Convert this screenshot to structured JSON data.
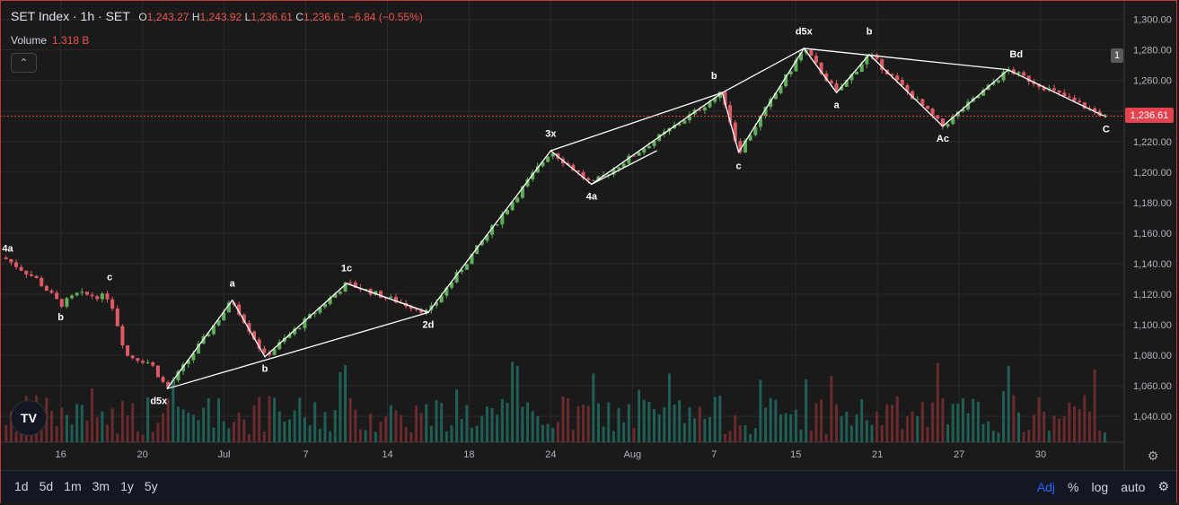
{
  "header": {
    "title": "SET Index · 1h · SET",
    "o_label": "O",
    "o_value": "1,243.27",
    "h_label": "H",
    "h_value": "1,243.92",
    "l_label": "L",
    "l_value": "1,236.61",
    "c_label": "C",
    "c_value": "1,236.61",
    "change": "−6.84 (−0.55%)",
    "volume_label": "Volume",
    "volume_value": "1.318 B"
  },
  "price_badge": "1,236.61",
  "scale_button": "1",
  "logo_text": "TV",
  "ranges": [
    "1d",
    "5d",
    "1m",
    "3m",
    "1y",
    "5y"
  ],
  "controls": {
    "adj": "Adj",
    "percent": "%",
    "log": "log",
    "auto": "auto"
  },
  "colors": {
    "up": "#26a69a",
    "down": "#ef5350",
    "up_candle": "#5fae5a",
    "down_candle": "#e05a66",
    "line": "#ffffff",
    "current": "#e3434f"
  },
  "chart_data": {
    "type": "candlestick",
    "ylim": [
      1023,
      1308
    ],
    "y_ticks": [
      1040,
      1060,
      1080,
      1100,
      1120,
      1140,
      1160,
      1180,
      1200,
      1220,
      1240,
      1260,
      1280,
      1300
    ],
    "y_tick_labels": [
      "1,040.00",
      "1,060.00",
      "1,080.00",
      "1,100.00",
      "1,120.00",
      "1,140.00",
      "1,160.00",
      "1,180.00",
      "1,200.00",
      "1,220.00",
      "1,240.00",
      "1,260.00",
      "1,280.00",
      "1,300.00"
    ],
    "x_index_range": [
      0,
      125
    ],
    "x_ticks": [
      {
        "label": "16",
        "x": 7
      },
      {
        "label": "20",
        "x": 17
      },
      {
        "label": "Jul",
        "x": 27
      },
      {
        "label": "7",
        "x": 37
      },
      {
        "label": "14",
        "x": 47
      },
      {
        "label": "18",
        "x": 57
      },
      {
        "label": "24",
        "x": 67
      },
      {
        "label": "Aug",
        "x": 77
      },
      {
        "label": "7",
        "x": 87
      },
      {
        "label": "15",
        "x": 97
      },
      {
        "label": "21",
        "x": 107
      },
      {
        "label": "27",
        "x": 117
      },
      {
        "label": "30",
        "x": 127
      }
    ],
    "current_price": 1236.61,
    "wave_path": [
      {
        "x": 20,
        "y": 1058
      },
      {
        "x": 28,
        "y": 1116
      },
      {
        "x": 32,
        "y": 1079
      },
      {
        "x": 42,
        "y": 1127
      },
      {
        "x": 52,
        "y": 1108
      },
      {
        "x": 67,
        "y": 1214
      },
      {
        "x": 72,
        "y": 1192
      },
      {
        "x": 88,
        "y": 1252
      },
      {
        "x": 90,
        "y": 1213
      },
      {
        "x": 98,
        "y": 1281
      },
      {
        "x": 102,
        "y": 1252
      },
      {
        "x": 106,
        "y": 1277
      },
      {
        "x": 115,
        "y": 1230
      },
      {
        "x": 123,
        "y": 1267
      },
      {
        "x": 135,
        "y": 1236
      }
    ],
    "trend_lines": [
      {
        "from": {
          "x": 20,
          "y": 1058
        },
        "to": {
          "x": 52,
          "y": 1108
        }
      },
      {
        "from": {
          "x": 67,
          "y": 1214
        },
        "to": {
          "x": 88,
          "y": 1252
        }
      },
      {
        "from": {
          "x": 88,
          "y": 1252
        },
        "to": {
          "x": 98,
          "y": 1281
        }
      },
      {
        "from": {
          "x": 98,
          "y": 1281
        },
        "to": {
          "x": 123,
          "y": 1267
        }
      },
      {
        "from": {
          "x": 72,
          "y": 1192
        },
        "to": {
          "x": 80,
          "y": 1214
        }
      },
      {
        "from": {
          "x": 42,
          "y": 1127
        },
        "to": {
          "x": 52,
          "y": 1108
        }
      }
    ],
    "annotations": [
      {
        "text": "4a",
        "x": 0.5,
        "y": 1148
      },
      {
        "text": "b",
        "x": 7,
        "y": 1103
      },
      {
        "text": "c",
        "x": 13,
        "y": 1129
      },
      {
        "text": "d5x",
        "x": 19,
        "y": 1048
      },
      {
        "text": "a",
        "x": 28,
        "y": 1125
      },
      {
        "text": "b",
        "x": 32,
        "y": 1069
      },
      {
        "text": "1c",
        "x": 42,
        "y": 1135
      },
      {
        "text": "2d",
        "x": 52,
        "y": 1098
      },
      {
        "text": "3x",
        "x": 67,
        "y": 1223
      },
      {
        "text": "4a",
        "x": 72,
        "y": 1182
      },
      {
        "text": "b",
        "x": 87,
        "y": 1261
      },
      {
        "text": "c",
        "x": 90,
        "y": 1202
      },
      {
        "text": "d5x",
        "x": 98,
        "y": 1290
      },
      {
        "text": "a",
        "x": 102,
        "y": 1242
      },
      {
        "text": "b",
        "x": 106,
        "y": 1290
      },
      {
        "text": "Ac",
        "x": 115,
        "y": 1220
      },
      {
        "text": "Bd",
        "x": 124,
        "y": 1275
      },
      {
        "text": "C",
        "x": 135,
        "y": 1226
      }
    ]
  }
}
